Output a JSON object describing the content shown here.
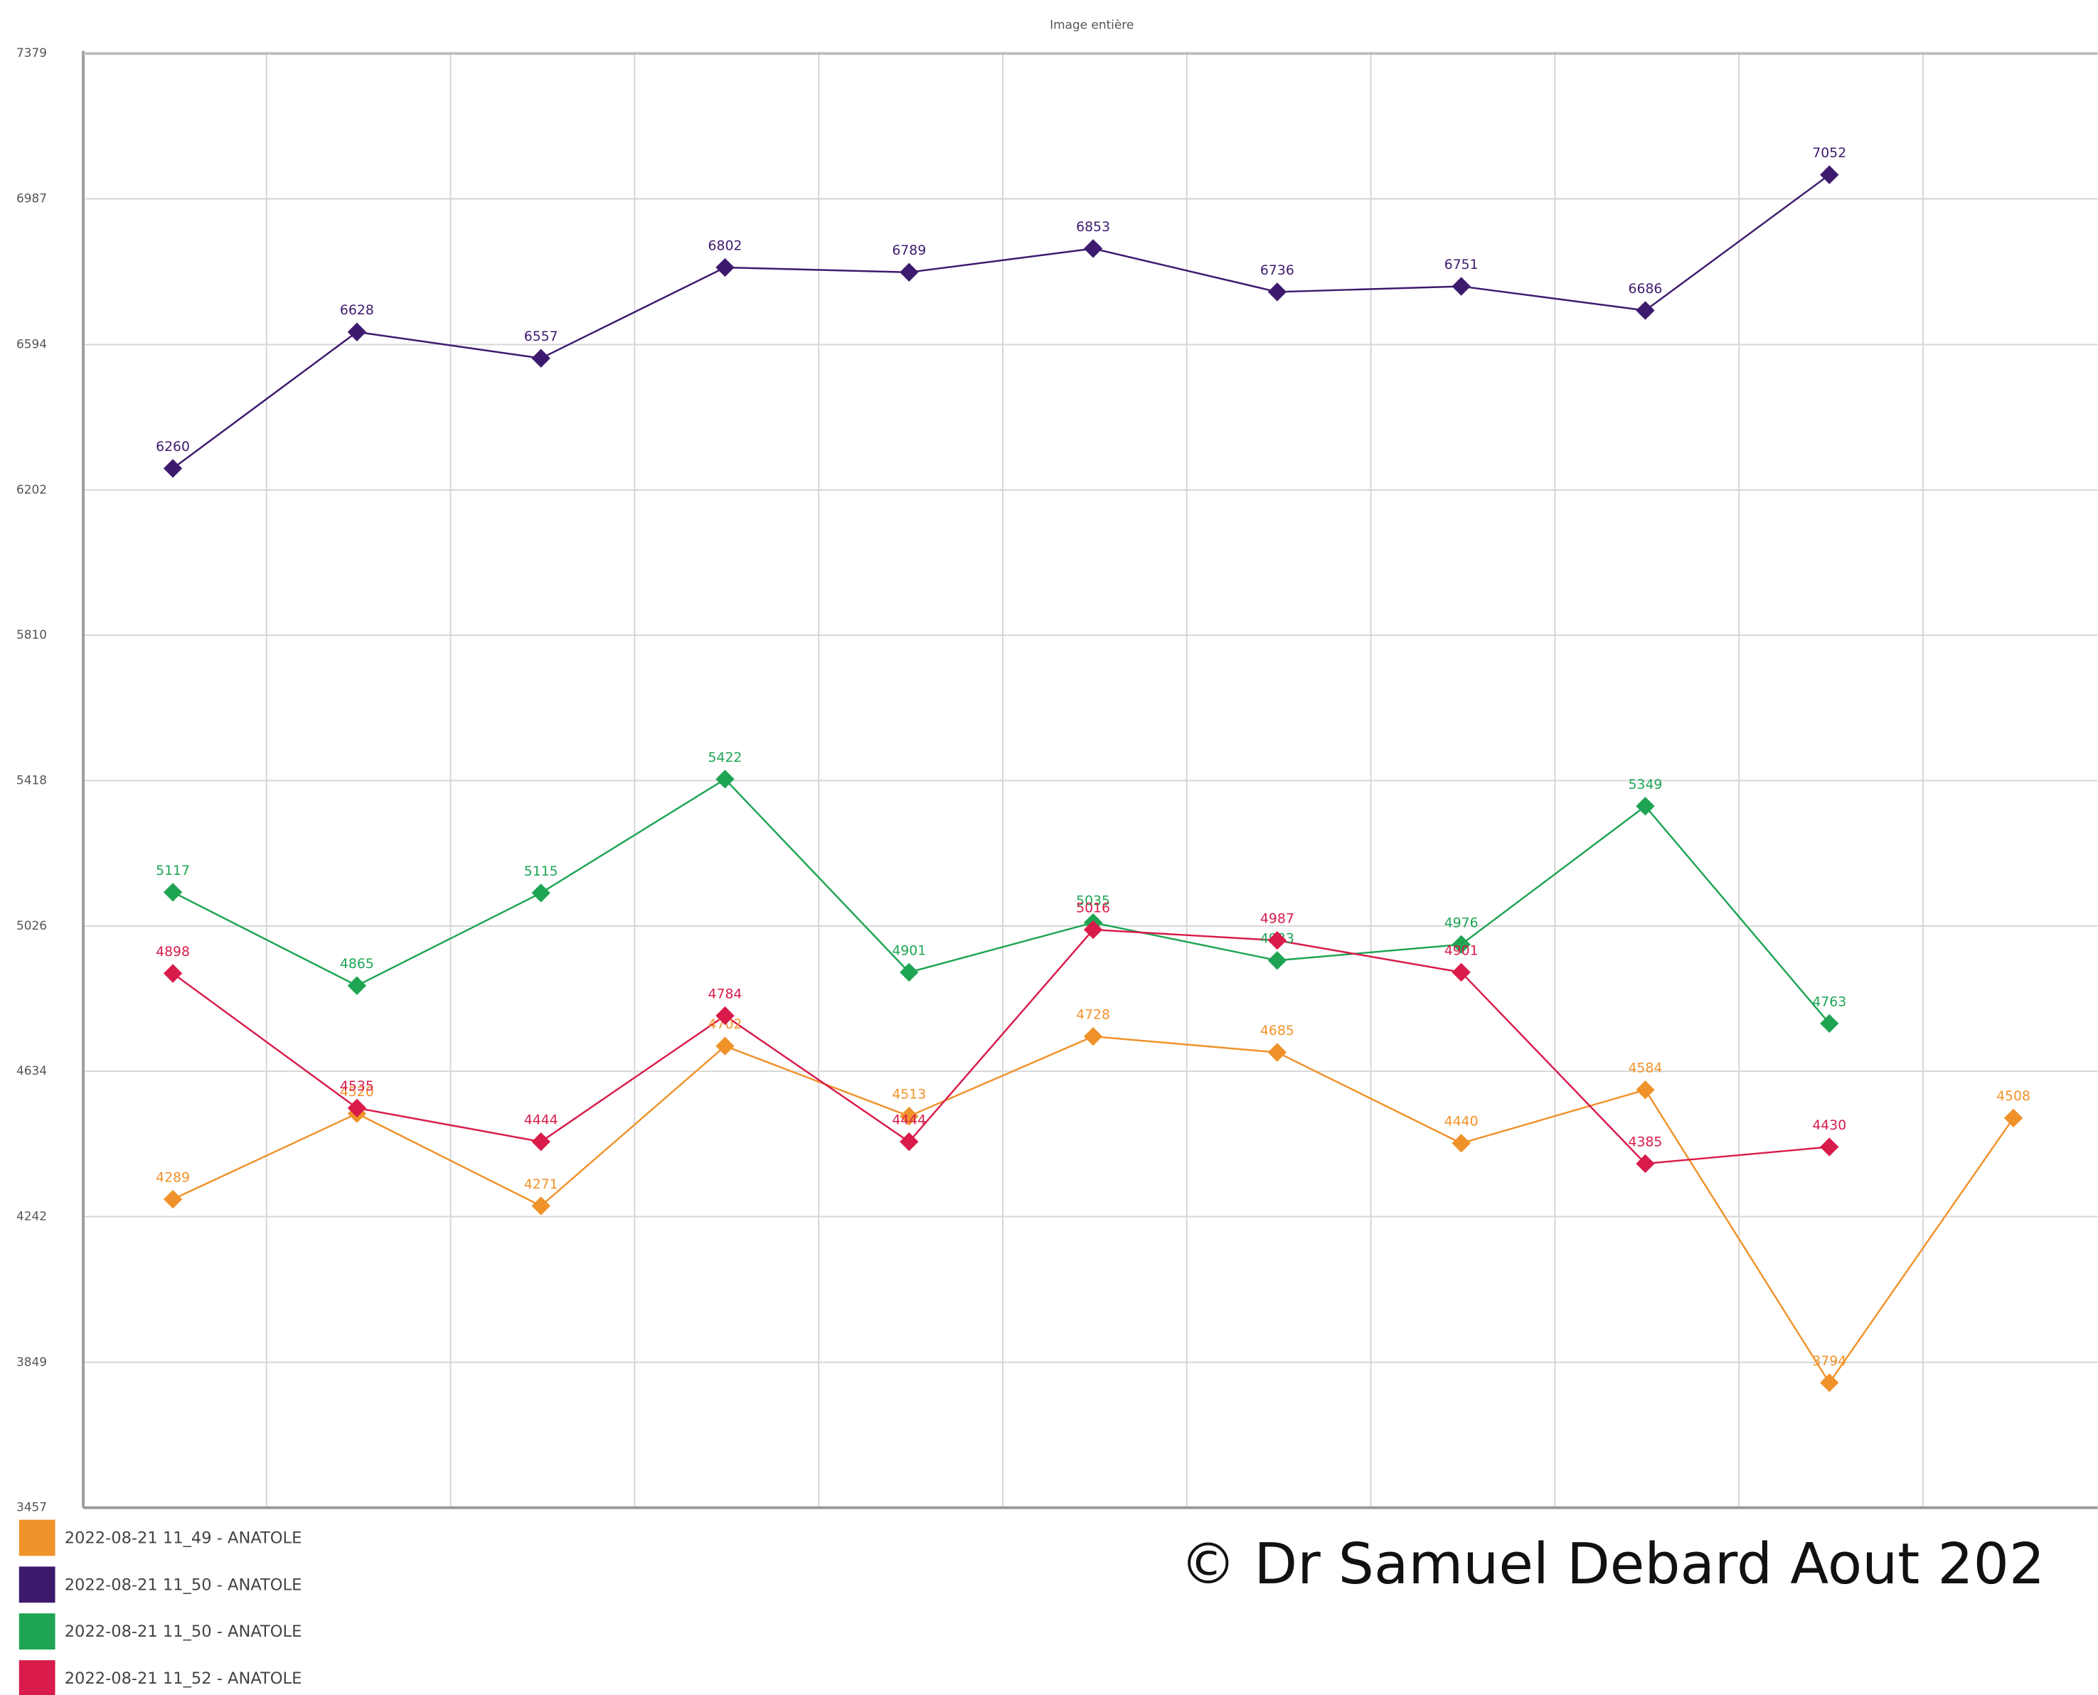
{
  "chart_data": {
    "type": "line",
    "title": "Image entière",
    "categories": [
      null,
      null,
      null,
      null,
      null,
      null,
      null,
      null,
      null,
      null,
      null
    ],
    "series": [
      {
        "name": "2022-08-21 11_49 - ANATOLE",
        "color": "#f0922a",
        "values": [
          4289,
          4520,
          4271,
          4702,
          4513,
          4728,
          4685,
          4440,
          4584,
          3794,
          4508
        ]
      },
      {
        "name": "2022-08-21 11_50 - ANATOLE",
        "color": "#3d1a6e",
        "values": [
          6260,
          6628,
          6557,
          6802,
          6789,
          6853,
          6736,
          6751,
          6686,
          7052,
          null
        ]
      },
      {
        "name": "2022-08-21 11_50 - ANATOLE",
        "color": "#1ea453",
        "values": [
          5117,
          4865,
          5115,
          5422,
          4901,
          5035,
          4933,
          4976,
          5349,
          4763,
          null
        ]
      },
      {
        "name": "2022-08-21 11_52 - ANATOLE",
        "color": "#d81b4a",
        "values": [
          4898,
          4535,
          4444,
          4784,
          4444,
          5016,
          4987,
          4901,
          4385,
          4430,
          null
        ]
      }
    ],
    "ylim": [
      3457,
      7379
    ],
    "yticks": [
      3457,
      3849,
      4242,
      4634,
      5026,
      5418,
      5810,
      6202,
      6594,
      6987,
      7379
    ],
    "grid": true,
    "data_labels": true,
    "watermark": "© Dr Samuel Debard Aout 202"
  }
}
